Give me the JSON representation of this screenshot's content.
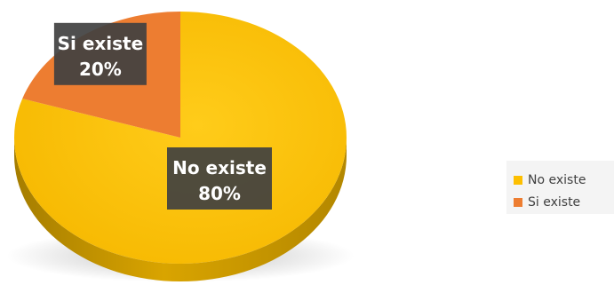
{
  "chart_data": {
    "type": "pie",
    "title": "",
    "categories": [
      "No existe",
      "Si existe"
    ],
    "values": [
      80,
      20
    ],
    "unit": "%",
    "data_labels": [
      {
        "category": "No existe",
        "percent": "80%"
      },
      {
        "category": "Si existe",
        "percent": "20%"
      }
    ],
    "legend": {
      "placement": "right",
      "entries": [
        "No existe",
        "Si existe"
      ]
    },
    "colors": {
      "No existe": "#fdbf00",
      "Si existe": "#ed7d31"
    },
    "style": "3d"
  }
}
